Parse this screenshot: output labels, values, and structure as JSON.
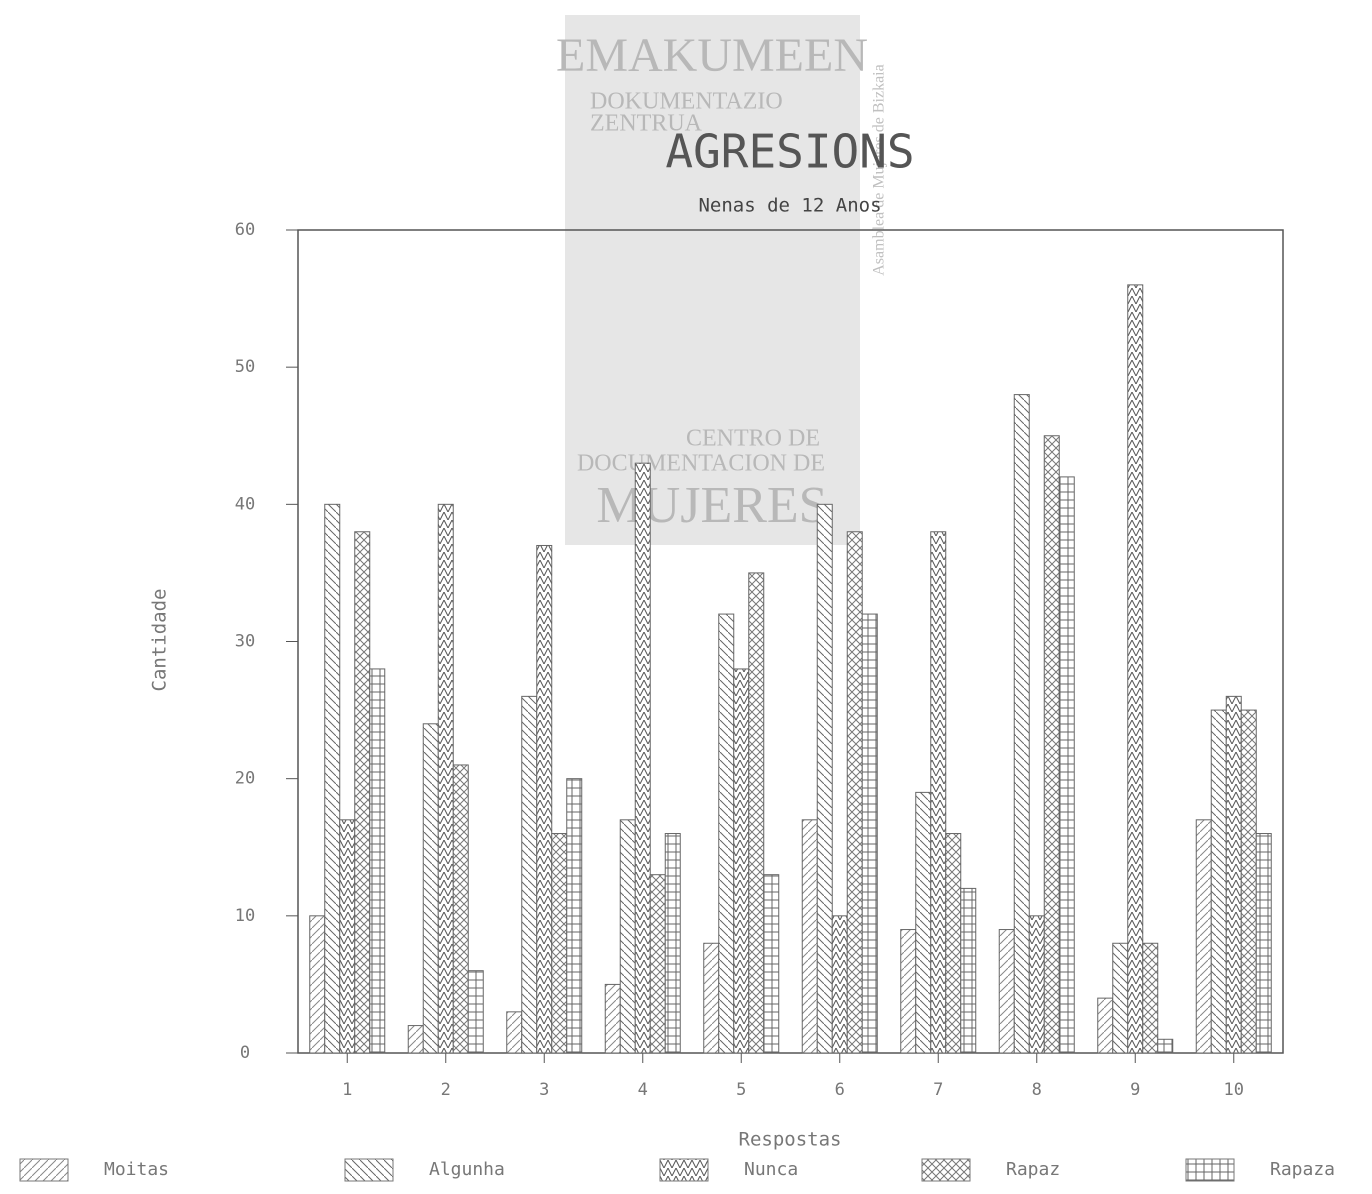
{
  "chart_data": {
    "type": "bar",
    "title": "AGRESIONS",
    "subtitle": "Nenas de 12 Anos",
    "y_label": "Cantidade",
    "x_label": "Respostas",
    "watermark": [
      "EMAKUMEEN",
      "DOKUMENTAZIO",
      "ZENTRUA",
      "CENTRO DE",
      "DOCUMENTACION DE",
      "MUJERES",
      "Asamblea de Mujeres de Bizkaia"
    ],
    "categories": [
      "1",
      "2",
      "3",
      "4",
      "5",
      "6",
      "7",
      "8",
      "9",
      "10"
    ],
    "series": [
      {
        "name": "Moitas",
        "color": "#888888",
        "values": [
          10,
          2,
          3,
          5,
          8,
          17,
          9,
          9,
          4,
          17
        ]
      },
      {
        "name": "Algunha",
        "color": "#666666",
        "values": [
          40,
          24,
          26,
          17,
          32,
          40,
          19,
          48,
          8,
          25
        ]
      },
      {
        "name": "Nunca",
        "color": "#555555",
        "values": [
          17,
          40,
          37,
          43,
          28,
          10,
          38,
          10,
          56,
          26
        ]
      },
      {
        "name": "Rapaz",
        "color": "#777777",
        "values": [
          38,
          21,
          16,
          13,
          35,
          38,
          16,
          45,
          8,
          25
        ]
      },
      {
        "name": "Rapaza",
        "color": "#666666",
        "values": [
          28,
          6,
          20,
          16,
          13,
          32,
          12,
          42,
          1,
          16
        ]
      }
    ],
    "ylim": [
      0,
      60
    ],
    "yticks": [
      0,
      10,
      20,
      30,
      40,
      50,
      60
    ],
    "grid": false,
    "legend": "bottom"
  }
}
